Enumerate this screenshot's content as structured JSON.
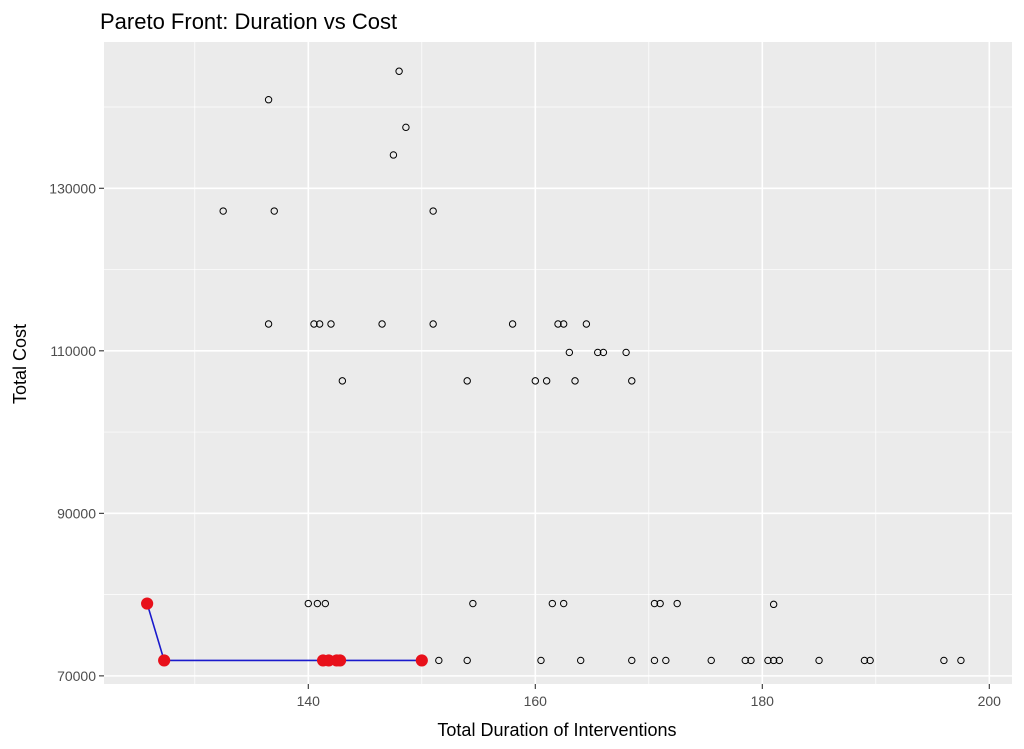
{
  "chart_data": {
    "type": "scatter",
    "title": "Pareto Front: Duration vs Cost",
    "xlabel": "Total Duration of Interventions",
    "ylabel": "Total Cost",
    "xlim": [
      122,
      202
    ],
    "ylim": [
      69000,
      148000
    ],
    "grid": true,
    "x_ticks": [
      140,
      160,
      180,
      200
    ],
    "x_tick_labels": [
      "140",
      "160",
      "180",
      "200"
    ],
    "x_minor_ticks": [
      130,
      150,
      170,
      190
    ],
    "y_ticks": [
      70000,
      90000,
      110000,
      130000
    ],
    "y_tick_labels": [
      "70000",
      "90000",
      "110000",
      "130000"
    ],
    "y_minor_ticks": [
      80000,
      100000,
      120000,
      140000
    ],
    "series": [
      {
        "marker": "open-circle",
        "color": "#000000",
        "points": [
          [
            148.0,
            144400
          ],
          [
            136.5,
            140900
          ],
          [
            148.6,
            137500
          ],
          [
            147.5,
            134100
          ],
          [
            132.5,
            127200
          ],
          [
            137.0,
            127200
          ],
          [
            151.0,
            127200
          ],
          [
            136.5,
            113300
          ],
          [
            140.5,
            113300
          ],
          [
            141.0,
            113300
          ],
          [
            142.0,
            113300
          ],
          [
            146.5,
            113300
          ],
          [
            151.0,
            113300
          ],
          [
            158.0,
            113300
          ],
          [
            162.0,
            113300
          ],
          [
            162.5,
            113300
          ],
          [
            164.5,
            113300
          ],
          [
            163.0,
            109800
          ],
          [
            165.5,
            109800
          ],
          [
            166.0,
            109800
          ],
          [
            168.0,
            109800
          ],
          [
            143.0,
            106300
          ],
          [
            154.0,
            106300
          ],
          [
            160.0,
            106300
          ],
          [
            161.0,
            106300
          ],
          [
            163.5,
            106300
          ],
          [
            168.5,
            106300
          ],
          [
            140.0,
            78900
          ],
          [
            140.8,
            78900
          ],
          [
            141.5,
            78900
          ],
          [
            154.5,
            78900
          ],
          [
            161.5,
            78900
          ],
          [
            162.5,
            78900
          ],
          [
            170.5,
            78900
          ],
          [
            171.0,
            78900
          ],
          [
            172.5,
            78900
          ],
          [
            181.0,
            78800
          ],
          [
            151.5,
            71900
          ],
          [
            154.0,
            71900
          ],
          [
            160.5,
            71900
          ],
          [
            164.0,
            71900
          ],
          [
            168.5,
            71900
          ],
          [
            170.5,
            71900
          ],
          [
            171.5,
            71900
          ],
          [
            175.5,
            71900
          ],
          [
            178.5,
            71900
          ],
          [
            179.0,
            71900
          ],
          [
            180.5,
            71900
          ],
          [
            181.0,
            71900
          ],
          [
            181.5,
            71900
          ],
          [
            185.0,
            71900
          ],
          [
            189.0,
            71900
          ],
          [
            189.5,
            71900
          ],
          [
            196.0,
            71900
          ],
          [
            197.5,
            71900
          ]
        ]
      },
      {
        "marker": "filled-circle",
        "color": "#e8101a",
        "line_color": "#1a1acc",
        "points": [
          [
            125.8,
            78900
          ],
          [
            127.3,
            71900
          ],
          [
            141.3,
            71900
          ],
          [
            141.8,
            71900
          ],
          [
            142.5,
            71900
          ],
          [
            142.8,
            71900
          ],
          [
            150.0,
            71900
          ]
        ]
      }
    ]
  }
}
